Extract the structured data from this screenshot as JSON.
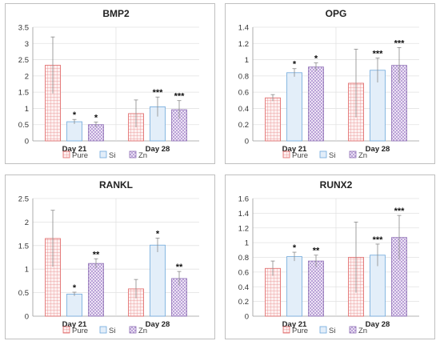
{
  "legend": {
    "labels": [
      "Pure",
      "Si",
      "Zn"
    ]
  },
  "chart_data": [
    {
      "type": "bar",
      "title": "BMP2",
      "categories": [
        "Day 21",
        "Day 28"
      ],
      "ylim": [
        0,
        3.5
      ],
      "yticks": [
        "0",
        "0.5",
        "1",
        "1.5",
        "2",
        "2.5",
        "3",
        "3.5"
      ],
      "grid": true,
      "legend_position": "bottom",
      "series": [
        {
          "name": "Pure",
          "values": [
            2.33,
            0.84
          ],
          "errors": [
            0.87,
            0.42
          ],
          "marks": [
            "",
            ""
          ]
        },
        {
          "name": "Si",
          "values": [
            0.59,
            1.05
          ],
          "errors": [
            0.07,
            0.3
          ],
          "marks": [
            "*",
            "***"
          ]
        },
        {
          "name": "Zn",
          "values": [
            0.5,
            0.96
          ],
          "errors": [
            0.08,
            0.28
          ],
          "marks": [
            "*",
            "***"
          ]
        }
      ]
    },
    {
      "type": "bar",
      "title": "OPG",
      "categories": [
        "Day 21",
        "Day 28"
      ],
      "ylim": [
        0,
        1.4
      ],
      "yticks": [
        "0",
        "0.2",
        "0.4",
        "0.6",
        "0.8",
        "1",
        "1.2",
        "1.4"
      ],
      "grid": true,
      "legend_position": "bottom",
      "series": [
        {
          "name": "Pure",
          "values": [
            0.53,
            0.71
          ],
          "errors": [
            0.04,
            0.42
          ],
          "marks": [
            "",
            ""
          ]
        },
        {
          "name": "Si",
          "values": [
            0.84,
            0.87
          ],
          "errors": [
            0.05,
            0.15
          ],
          "marks": [
            "*",
            "***"
          ]
        },
        {
          "name": "Zn",
          "values": [
            0.91,
            0.93
          ],
          "errors": [
            0.05,
            0.22
          ],
          "marks": [
            "*",
            "***"
          ]
        }
      ]
    },
    {
      "type": "bar",
      "title": "RANKL",
      "categories": [
        "Day 21",
        "Day 28"
      ],
      "ylim": [
        0,
        2.5
      ],
      "yticks": [
        "0",
        "0.5",
        "1",
        "1.5",
        "2",
        "2.5"
      ],
      "grid": true,
      "legend_position": "bottom",
      "series": [
        {
          "name": "Pure",
          "values": [
            1.65,
            0.58
          ],
          "errors": [
            0.6,
            0.2
          ],
          "marks": [
            "",
            ""
          ]
        },
        {
          "name": "Si",
          "values": [
            0.47,
            1.51
          ],
          "errors": [
            0.04,
            0.15
          ],
          "marks": [
            "*",
            "*"
          ]
        },
        {
          "name": "Zn",
          "values": [
            1.12,
            0.8
          ],
          "errors": [
            0.1,
            0.15
          ],
          "marks": [
            "**",
            "**"
          ]
        }
      ]
    },
    {
      "type": "bar",
      "title": "RUNX2",
      "categories": [
        "Day 21",
        "Day 28"
      ],
      "ylim": [
        0,
        1.6
      ],
      "yticks": [
        "0",
        "0.2",
        "0.4",
        "0.6",
        "0.8",
        "1",
        "1.2",
        "1.4",
        "1.6"
      ],
      "grid": true,
      "legend_position": "bottom",
      "series": [
        {
          "name": "Pure",
          "values": [
            0.65,
            0.8
          ],
          "errors": [
            0.1,
            0.48
          ],
          "marks": [
            "",
            ""
          ]
        },
        {
          "name": "Si",
          "values": [
            0.81,
            0.83
          ],
          "errors": [
            0.06,
            0.15
          ],
          "marks": [
            "*",
            "***"
          ]
        },
        {
          "name": "Zn",
          "values": [
            0.75,
            1.07
          ],
          "errors": [
            0.08,
            0.3
          ],
          "marks": [
            "**",
            "***"
          ]
        }
      ]
    }
  ]
}
